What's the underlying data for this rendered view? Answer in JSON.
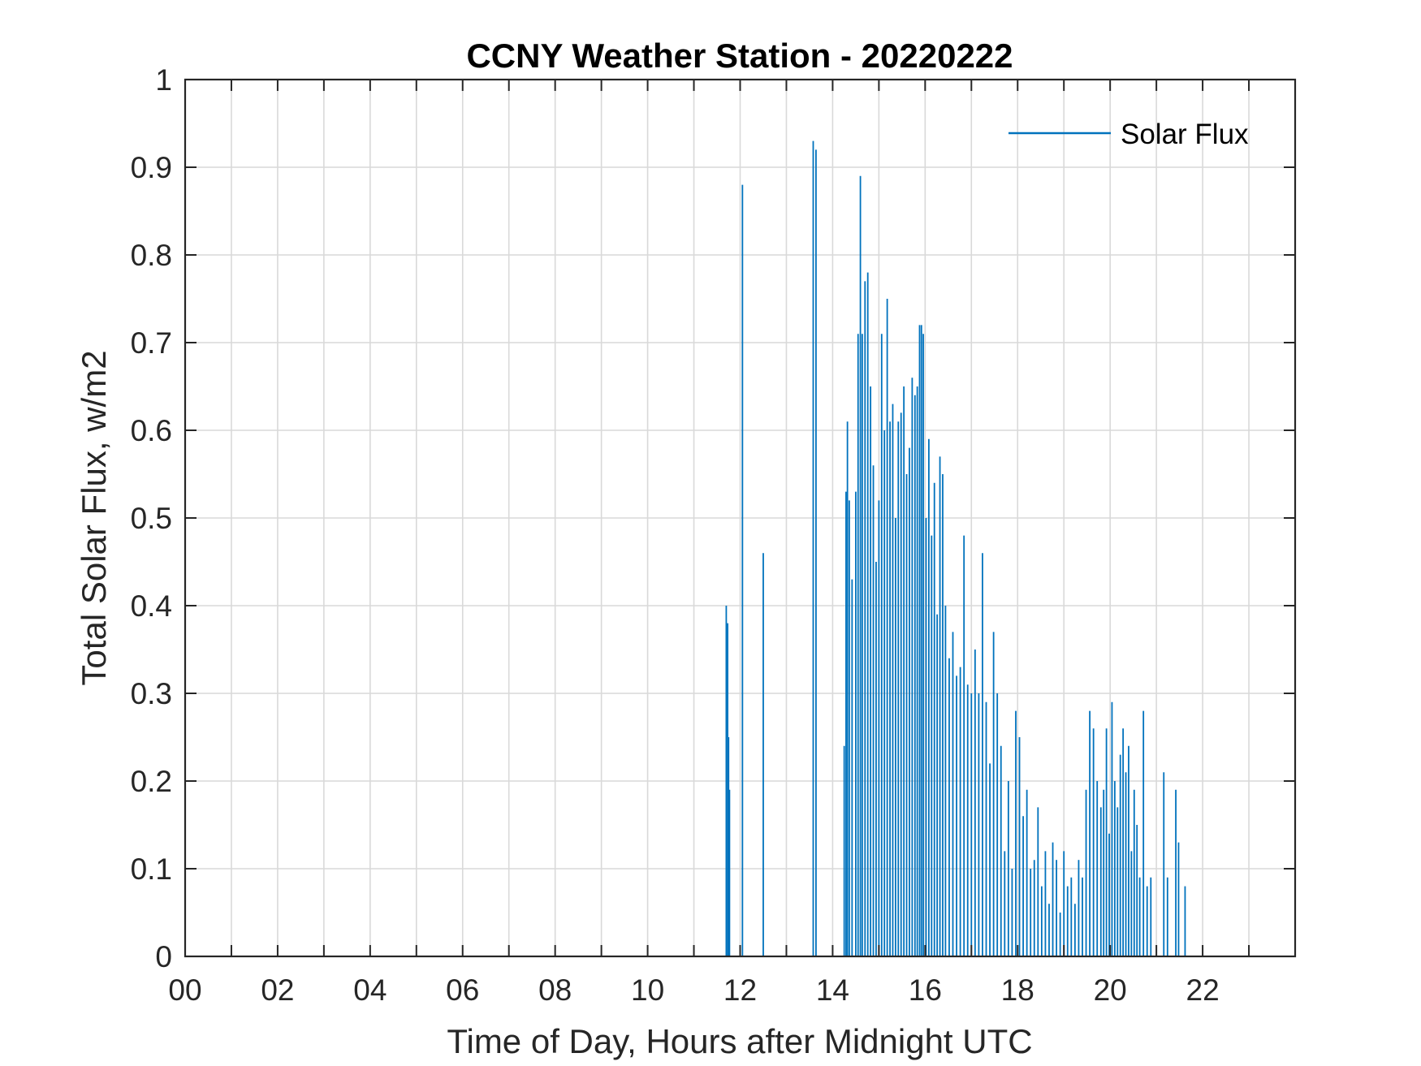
{
  "chart_data": {
    "type": "bar",
    "title": "CCNY Weather Station - 20220222",
    "xlabel": "Time of Day, Hours after Midnight UTC",
    "ylabel": "Total Solar Flux, w/m2",
    "xlim": [
      0,
      24
    ],
    "ylim": [
      0,
      1
    ],
    "x_ticks": [
      0,
      2,
      4,
      6,
      8,
      10,
      12,
      14,
      16,
      18,
      20,
      22
    ],
    "x_tick_labels": [
      "00",
      "02",
      "04",
      "06",
      "08",
      "10",
      "12",
      "14",
      "16",
      "18",
      "20",
      "22"
    ],
    "y_ticks": [
      0,
      0.1,
      0.2,
      0.3,
      0.4,
      0.5,
      0.6,
      0.7,
      0.8,
      0.9,
      1
    ],
    "y_tick_labels": [
      "0",
      "0.1",
      "0.2",
      "0.3",
      "0.4",
      "0.5",
      "0.6",
      "0.7",
      "0.8",
      "0.9",
      "1"
    ],
    "grid": true,
    "minor_x_grid_step": 1,
    "legend": {
      "position": "top-right",
      "entries": [
        "Solar Flux"
      ]
    },
    "series": [
      {
        "name": "Solar Flux",
        "color": "#0072BD",
        "points": [
          [
            11.7,
            0.4
          ],
          [
            11.73,
            0.38
          ],
          [
            11.75,
            0.25
          ],
          [
            11.77,
            0.19
          ],
          [
            12.05,
            0.88
          ],
          [
            12.5,
            0.46
          ],
          [
            13.58,
            0.93
          ],
          [
            13.64,
            0.92
          ],
          [
            14.25,
            0.24
          ],
          [
            14.29,
            0.53
          ],
          [
            14.32,
            0.61
          ],
          [
            14.36,
            0.52
          ],
          [
            14.42,
            0.43
          ],
          [
            14.5,
            0.53
          ],
          [
            14.55,
            0.71
          ],
          [
            14.6,
            0.89
          ],
          [
            14.64,
            0.71
          ],
          [
            14.7,
            0.77
          ],
          [
            14.76,
            0.78
          ],
          [
            14.82,
            0.65
          ],
          [
            14.88,
            0.56
          ],
          [
            14.94,
            0.45
          ],
          [
            15.0,
            0.52
          ],
          [
            15.06,
            0.71
          ],
          [
            15.12,
            0.6
          ],
          [
            15.18,
            0.75
          ],
          [
            15.24,
            0.61
          ],
          [
            15.3,
            0.63
          ],
          [
            15.36,
            0.5
          ],
          [
            15.42,
            0.61
          ],
          [
            15.48,
            0.62
          ],
          [
            15.54,
            0.65
          ],
          [
            15.6,
            0.55
          ],
          [
            15.66,
            0.58
          ],
          [
            15.72,
            0.66
          ],
          [
            15.78,
            0.64
          ],
          [
            15.83,
            0.65
          ],
          [
            15.88,
            0.72
          ],
          [
            15.92,
            0.72
          ],
          [
            15.96,
            0.71
          ],
          [
            16.02,
            0.5
          ],
          [
            16.08,
            0.59
          ],
          [
            16.14,
            0.48
          ],
          [
            16.2,
            0.54
          ],
          [
            16.26,
            0.39
          ],
          [
            16.32,
            0.57
          ],
          [
            16.38,
            0.55
          ],
          [
            16.44,
            0.4
          ],
          [
            16.52,
            0.34
          ],
          [
            16.6,
            0.37
          ],
          [
            16.68,
            0.32
          ],
          [
            16.76,
            0.33
          ],
          [
            16.84,
            0.48
          ],
          [
            16.92,
            0.31
          ],
          [
            17.0,
            0.3
          ],
          [
            17.08,
            0.35
          ],
          [
            17.16,
            0.3
          ],
          [
            17.24,
            0.46
          ],
          [
            17.32,
            0.29
          ],
          [
            17.4,
            0.22
          ],
          [
            17.48,
            0.37
          ],
          [
            17.56,
            0.3
          ],
          [
            17.64,
            0.24
          ],
          [
            17.72,
            0.12
          ],
          [
            17.8,
            0.2
          ],
          [
            17.88,
            0.1
          ],
          [
            17.96,
            0.28
          ],
          [
            18.04,
            0.25
          ],
          [
            18.12,
            0.16
          ],
          [
            18.2,
            0.19
          ],
          [
            18.28,
            0.1
          ],
          [
            18.36,
            0.11
          ],
          [
            18.44,
            0.17
          ],
          [
            18.52,
            0.08
          ],
          [
            18.6,
            0.12
          ],
          [
            18.68,
            0.06
          ],
          [
            18.76,
            0.13
          ],
          [
            18.84,
            0.11
          ],
          [
            18.92,
            0.05
          ],
          [
            19.0,
            0.12
          ],
          [
            19.08,
            0.08
          ],
          [
            19.16,
            0.09
          ],
          [
            19.24,
            0.06
          ],
          [
            19.32,
            0.11
          ],
          [
            19.4,
            0.09
          ],
          [
            19.48,
            0.19
          ],
          [
            19.56,
            0.28
          ],
          [
            19.64,
            0.26
          ],
          [
            19.72,
            0.2
          ],
          [
            19.8,
            0.17
          ],
          [
            19.86,
            0.19
          ],
          [
            19.92,
            0.26
          ],
          [
            19.98,
            0.14
          ],
          [
            20.04,
            0.29
          ],
          [
            20.1,
            0.2
          ],
          [
            20.16,
            0.17
          ],
          [
            20.22,
            0.23
          ],
          [
            20.28,
            0.26
          ],
          [
            20.34,
            0.21
          ],
          [
            20.4,
            0.24
          ],
          [
            20.46,
            0.12
          ],
          [
            20.52,
            0.19
          ],
          [
            20.58,
            0.15
          ],
          [
            20.64,
            0.09
          ],
          [
            20.72,
            0.28
          ],
          [
            20.8,
            0.08
          ],
          [
            20.88,
            0.09
          ],
          [
            21.16,
            0.21
          ],
          [
            21.24,
            0.09
          ],
          [
            21.42,
            0.19
          ],
          [
            21.48,
            0.13
          ],
          [
            21.62,
            0.08
          ]
        ]
      }
    ]
  }
}
